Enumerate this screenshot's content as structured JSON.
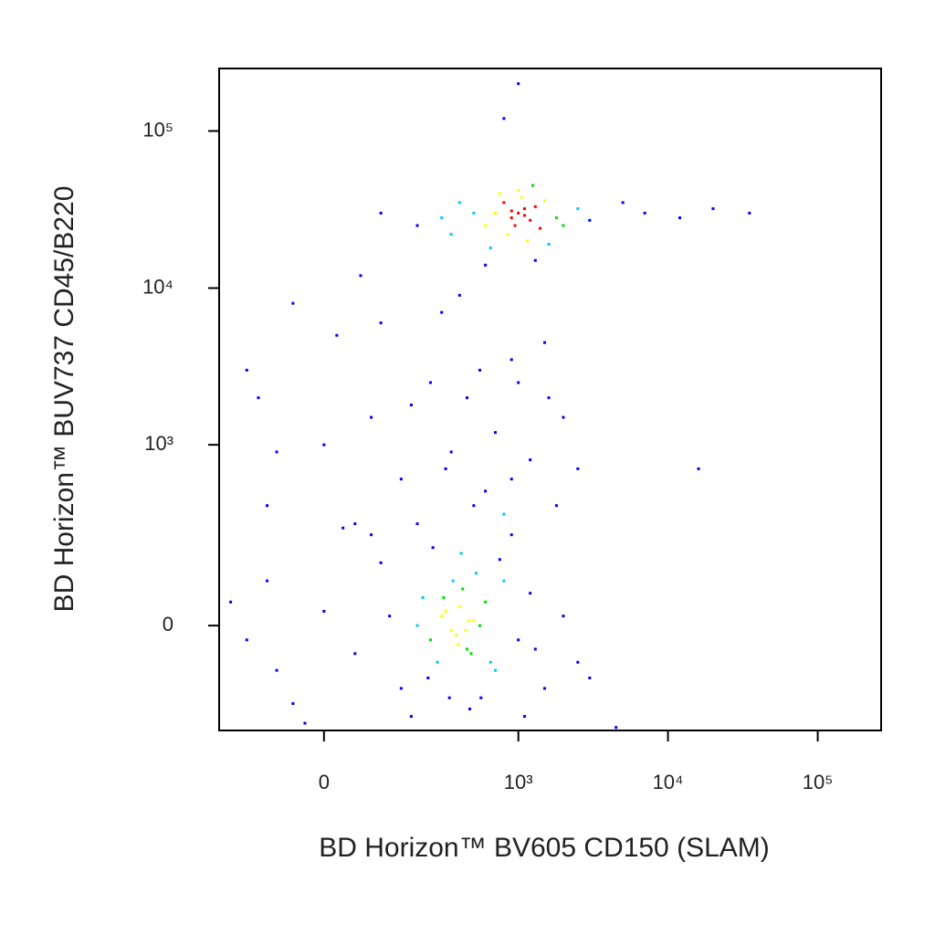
{
  "chart_data": {
    "type": "scatter",
    "xlabel": "BD Horizon™ BV605 CD150 (SLAM)",
    "ylabel": "BD Horizon™ BUV737 CD45/B220",
    "xscale": "biexponential",
    "yscale": "biexponential",
    "xlim": [
      -243,
      265000
    ],
    "ylim": [
      -315,
      250000
    ],
    "xticks": [
      0,
      {
        "value": 1000,
        "label": "10³"
      },
      {
        "value": 10000,
        "label": "10⁴"
      },
      {
        "value": 100000,
        "label": "10⁵"
      }
    ],
    "yticks": [
      0,
      {
        "value": 1000,
        "label": "10³"
      },
      {
        "value": 10000,
        "label": "10⁴"
      },
      {
        "value": 100000,
        "label": "10⁵"
      }
    ],
    "colormap": [
      "#0000ff",
      "#00c8ff",
      "#00e000",
      "#ffff00",
      "#ff0000"
    ],
    "x": [
      1000,
      900,
      1100,
      800,
      1200,
      950,
      1050,
      700,
      1300,
      850,
      1500,
      600,
      1000,
      1150,
      750,
      1400,
      500,
      1800,
      400,
      2000,
      300,
      1250,
      650,
      900,
      1100,
      2500,
      350,
      1600,
      3000,
      5000,
      7000,
      12000,
      20000,
      35000,
      200,
      100,
      1000,
      800,
      1300,
      600,
      -150,
      -50,
      20,
      80,
      150,
      250,
      350,
      500,
      700,
      900,
      1200,
      1600,
      2000,
      2500,
      -100,
      0,
      100,
      200,
      300,
      450,
      600,
      800,
      1000,
      1500,
      -80,
      50,
      180,
      320,
      550,
      900,
      1800,
      -120,
      60,
      400,
      16000,
      200,
      250,
      300,
      350,
      400,
      450,
      500,
      220,
      280,
      320,
      380,
      420,
      480,
      550,
      600,
      700,
      800,
      1000,
      1200,
      1500,
      2000,
      3000,
      100,
      50,
      0,
      -50,
      -100,
      -150,
      -200,
      150,
      180,
      260,
      340,
      410,
      470,
      520,
      650,
      900,
      1300,
      -30,
      30,
      120,
      240,
      360,
      440,
      560,
      750,
      1100,
      4500,
      2500,
      80,
      -80,
      310,
      390,
      460
    ],
    "y": [
      30000,
      28000,
      32000,
      35000,
      27000,
      25000,
      38000,
      30000,
      33000,
      22000,
      36000,
      25000,
      42000,
      20000,
      40000,
      24000,
      30000,
      28000,
      35000,
      25000,
      28000,
      45000,
      18000,
      31000,
      29000,
      32000,
      22000,
      19000,
      27000,
      35000,
      30000,
      28000,
      32000,
      30000,
      25000,
      30000,
      200000,
      120000,
      15000,
      14000,
      3000,
      8000,
      5000,
      1500,
      600,
      2500,
      900,
      400,
      1200,
      3500,
      800,
      2000,
      1500,
      700,
      400,
      1000,
      6000,
      300,
      7000,
      2000,
      500,
      350,
      2500,
      4500,
      900,
      300,
      1800,
      700,
      3000,
      600,
      400,
      2000,
      12000,
      9000,
      700,
      0,
      -30,
      20,
      -10,
      40,
      -50,
      10,
      60,
      -80,
      30,
      -20,
      80,
      -60,
      0,
      50,
      -100,
      100,
      -30,
      70,
      -150,
      20,
      -120,
      150,
      -60,
      30,
      -200,
      100,
      -30,
      50,
      -150,
      -250,
      200,
      -180,
      180,
      -220,
      120,
      -80,
      250,
      -50,
      -280,
      280,
      20,
      -120,
      100,
      -10,
      -180,
      160,
      -250,
      -300,
      -80,
      250,
      -100,
      60,
      -40,
      10
    ]
  }
}
